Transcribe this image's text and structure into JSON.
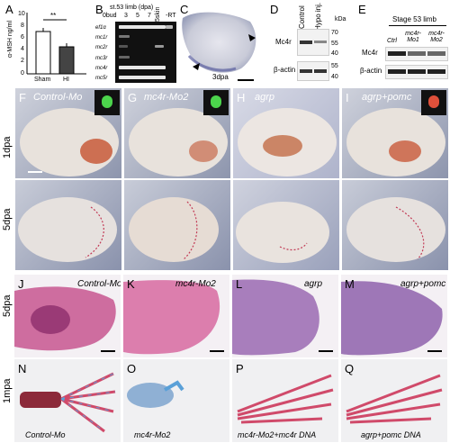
{
  "panels": {
    "A": {
      "label": "A",
      "ylabel": "α-MSH ng/ml",
      "yticks": [
        "0",
        "2",
        "4",
        "6",
        "8",
        "10"
      ],
      "bars": [
        "Sham",
        "HI"
      ],
      "sig": "**"
    },
    "B": {
      "label": "B",
      "header": "st.53 limb (dpa)",
      "cols": [
        "0bud",
        "3",
        "5",
        "7",
        "5skin",
        "-RT"
      ],
      "rows": [
        "ef1α",
        "mc1r",
        "mc2r",
        "mc3r",
        "mc4r",
        "mc5r"
      ]
    },
    "C": {
      "label": "C",
      "caption": "3dpa"
    },
    "D": {
      "label": "D",
      "cols": [
        "Control",
        "Hypo inj."
      ],
      "kda": "kDa",
      "markers": [
        "70",
        "55",
        "40",
        "55",
        "40"
      ],
      "row1": "Mc4r",
      "row2": "β-actin"
    },
    "E": {
      "label": "E",
      "title": "Stage 53 limb",
      "cols": [
        "Ctrl",
        "mc4r-Mo1",
        "mc4r-Mo2"
      ],
      "row1": "Mc4r",
      "row2": "β-actin"
    },
    "F": {
      "label": "F",
      "title": "Control-Mo"
    },
    "G": {
      "label": "G",
      "title": "mc4r-Mo2"
    },
    "H": {
      "label": "H",
      "title": "agrp"
    },
    "I": {
      "label": "I",
      "title": "agrp+pomc"
    },
    "J": {
      "label": "J",
      "title": "Control-Mo"
    },
    "K": {
      "label": "K",
      "title": "mc4r-Mo2"
    },
    "L": {
      "label": "L",
      "title": "agrp"
    },
    "M": {
      "label": "M",
      "title": "agrp+pomc"
    },
    "N": {
      "label": "N",
      "title": "Control-Mo"
    },
    "O": {
      "label": "O",
      "title": "mc4r-Mo2"
    },
    "P": {
      "label": "P",
      "title": "mc4r-Mo2+mc4r DNA"
    },
    "Q": {
      "label": "Q",
      "title": "agrp+pomc DNA"
    }
  },
  "row_labels": {
    "r1": "1dpa",
    "r2": "5dpa",
    "r3": "5dpa",
    "r4": "1mpa"
  }
}
